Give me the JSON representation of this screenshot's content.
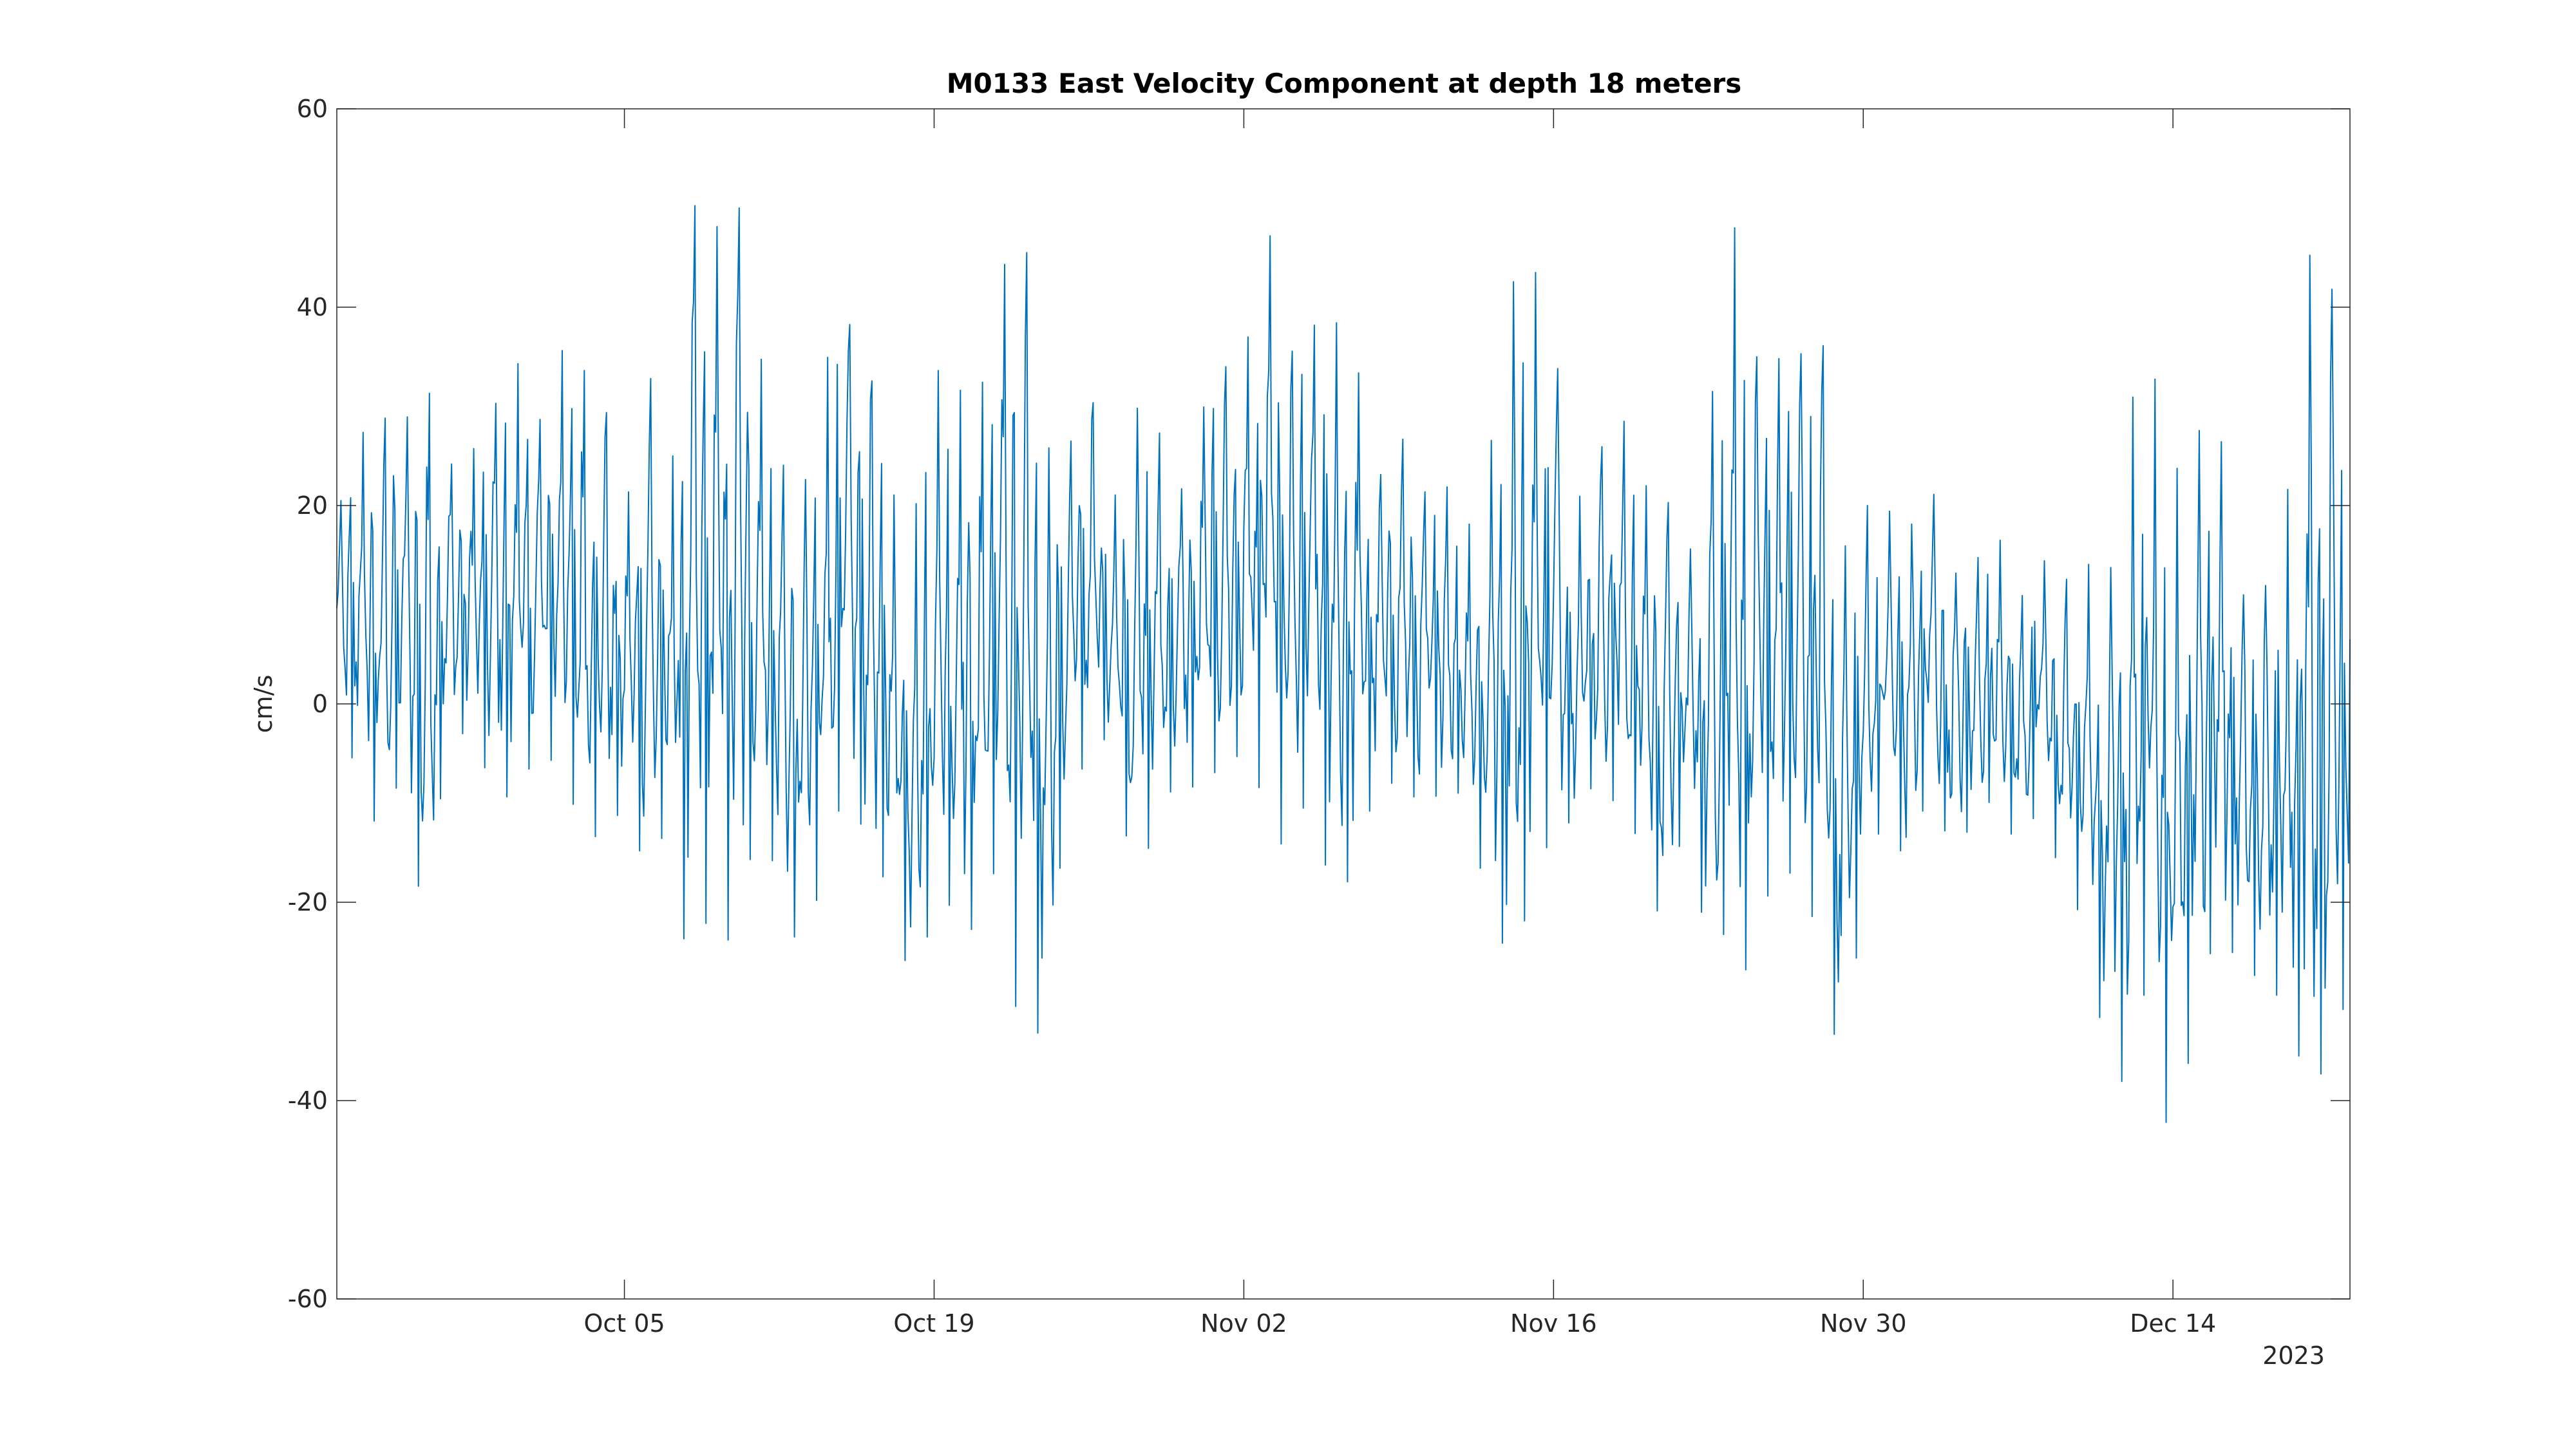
{
  "chart_data": {
    "type": "line",
    "title": "M0133 East Velocity Component at depth 18 meters",
    "xlabel": "",
    "ylabel": "cm/s",
    "x_axis": {
      "type": "date",
      "range": [
        "2023-09-22",
        "2023-12-22"
      ],
      "ticks": [
        {
          "date": "2023-10-05",
          "label": "Oct 05"
        },
        {
          "date": "2023-10-19",
          "label": "Oct 19"
        },
        {
          "date": "2023-11-02",
          "label": "Nov 02"
        },
        {
          "date": "2023-11-16",
          "label": "Nov 16"
        },
        {
          "date": "2023-11-30",
          "label": "Nov 30"
        },
        {
          "date": "2023-12-14",
          "label": "Dec 14"
        }
      ],
      "secondary_label": "2023"
    },
    "ylim": [
      -60,
      60
    ],
    "yticks": [
      60,
      40,
      20,
      0,
      -20,
      -40,
      -60
    ],
    "grid": false,
    "line_color": "#0072bd",
    "series": [
      {
        "x": [
          "2023-09-22",
          "2023-09-23",
          "2023-09-24",
          "2023-09-25",
          "2023-09-26",
          "2023-09-27",
          "2023-09-28",
          "2023-09-29",
          "2023-09-30",
          "2023-10-01",
          "2023-10-02",
          "2023-10-03",
          "2023-10-04",
          "2023-10-05",
          "2023-10-06",
          "2023-10-07",
          "2023-10-08",
          "2023-10-09",
          "2023-10-10",
          "2023-10-11",
          "2023-10-12",
          "2023-10-13",
          "2023-10-14",
          "2023-10-15",
          "2023-10-16",
          "2023-10-17",
          "2023-10-18",
          "2023-10-19",
          "2023-10-20",
          "2023-10-21",
          "2023-10-22",
          "2023-10-23",
          "2023-10-24",
          "2023-10-25",
          "2023-10-26",
          "2023-10-27",
          "2023-10-28",
          "2023-10-29",
          "2023-10-30",
          "2023-10-31",
          "2023-11-01",
          "2023-11-02",
          "2023-11-03",
          "2023-11-04",
          "2023-11-05",
          "2023-11-06",
          "2023-11-07",
          "2023-11-08",
          "2023-11-09",
          "2023-11-10",
          "2023-11-11",
          "2023-11-12",
          "2023-11-13",
          "2023-11-14",
          "2023-11-15",
          "2023-11-16",
          "2023-11-17",
          "2023-11-18",
          "2023-11-19",
          "2023-11-20",
          "2023-11-21",
          "2023-11-22",
          "2023-11-23",
          "2023-11-24",
          "2023-11-25",
          "2023-11-26",
          "2023-11-27",
          "2023-11-28",
          "2023-11-29",
          "2023-11-30",
          "2023-12-01",
          "2023-12-02",
          "2023-12-03",
          "2023-12-04",
          "2023-12-05",
          "2023-12-06",
          "2023-12-07",
          "2023-12-08",
          "2023-12-09",
          "2023-12-10",
          "2023-12-11",
          "2023-12-12",
          "2023-12-13",
          "2023-12-14",
          "2023-12-15",
          "2023-12-16",
          "2023-12-17",
          "2023-12-18",
          "2023-12-19",
          "2023-12-20",
          "2023-12-21",
          "2023-12-22"
        ],
        "max": [
          19,
          27,
          29,
          28,
          33,
          24,
          25,
          29,
          36,
          27,
          36,
          34,
          32,
          18,
          36,
          19,
          51,
          47,
          53,
          37,
          25,
          20,
          34,
          39,
          35,
          22,
          17,
          34,
          32,
          30,
          43,
          50,
          26,
          25,
          33,
          19,
          30,
          29,
          20,
          29,
          34,
          34,
          50,
          35,
          38,
          39,
          36,
          22,
          28,
          21,
          23,
          17,
          23,
          42,
          45,
          37,
          20,
          25,
          30,
          22,
          22,
          13,
          27,
          51,
          35,
          35,
          34,
          41,
          15,
          20,
          20,
          17,
          23,
          13,
          14,
          18,
          10,
          15,
          12,
          15,
          10,
          30,
          35,
          23,
          27,
          30,
          11,
          11,
          16,
          46,
          42,
          41
        ],
        "min": [
          -2,
          -7,
          -14,
          -6,
          -24,
          -3,
          -3,
          -8,
          -10,
          -5,
          -6,
          -12,
          -14,
          -10,
          -17,
          -12,
          -29,
          -19,
          -26,
          -11,
          -18,
          -26,
          -17,
          -8,
          -14,
          -19,
          -29,
          -21,
          -20,
          -24,
          -14,
          -38,
          -31,
          -10,
          -5,
          -3,
          -18,
          -13,
          -7,
          -9,
          -6,
          -5,
          -10,
          -16,
          -8,
          -20,
          -17,
          -8,
          -8,
          -10,
          -9,
          -9,
          -20,
          -26,
          -20,
          -12,
          -12,
          -7,
          -11,
          -14,
          -24,
          -10,
          -26,
          -22,
          -29,
          -15,
          -18,
          -23,
          -38,
          -20,
          -10,
          -17,
          -8,
          -15,
          -12,
          -9,
          -15,
          -10,
          -18,
          -22,
          -36,
          -39,
          -25,
          -50,
          -30,
          -23,
          -26,
          -28,
          -30,
          -38,
          -37,
          -28
        ]
      }
    ]
  }
}
